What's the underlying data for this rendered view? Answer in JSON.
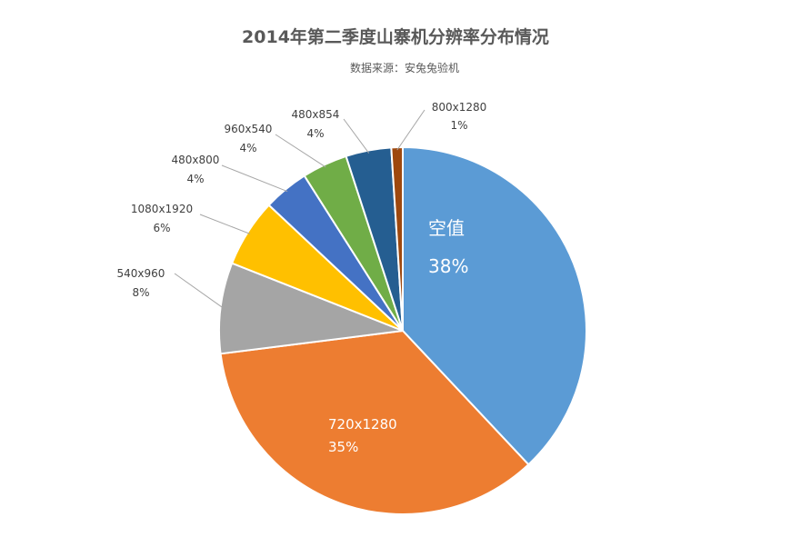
{
  "chart_data": {
    "type": "pie",
    "title": "2014年第二季度山寨机分辨率分布情况",
    "subtitle": "数据来源：安兔兔验机",
    "slices": [
      {
        "label": "空值",
        "pct_label": "38%",
        "value": 38,
        "color": "#5b9bd5"
      },
      {
        "label": "720x1280",
        "pct_label": "35%",
        "value": 35,
        "color": "#ed7d31"
      },
      {
        "label": "540x960",
        "pct_label": "8%",
        "value": 8,
        "color": "#a5a5a5"
      },
      {
        "label": "1080x1920",
        "pct_label": "6%",
        "value": 6,
        "color": "#ffc000"
      },
      {
        "label": "480x800",
        "pct_label": "4%",
        "value": 4,
        "color": "#4472c4"
      },
      {
        "label": "960x540",
        "pct_label": "4%",
        "value": 4,
        "color": "#70ad47"
      },
      {
        "label": "480x854",
        "pct_label": "4%",
        "value": 4,
        "color": "#255e91"
      },
      {
        "label": "800x1280",
        "pct_label": "1%",
        "value": 1,
        "color": "#9e480e"
      }
    ]
  }
}
